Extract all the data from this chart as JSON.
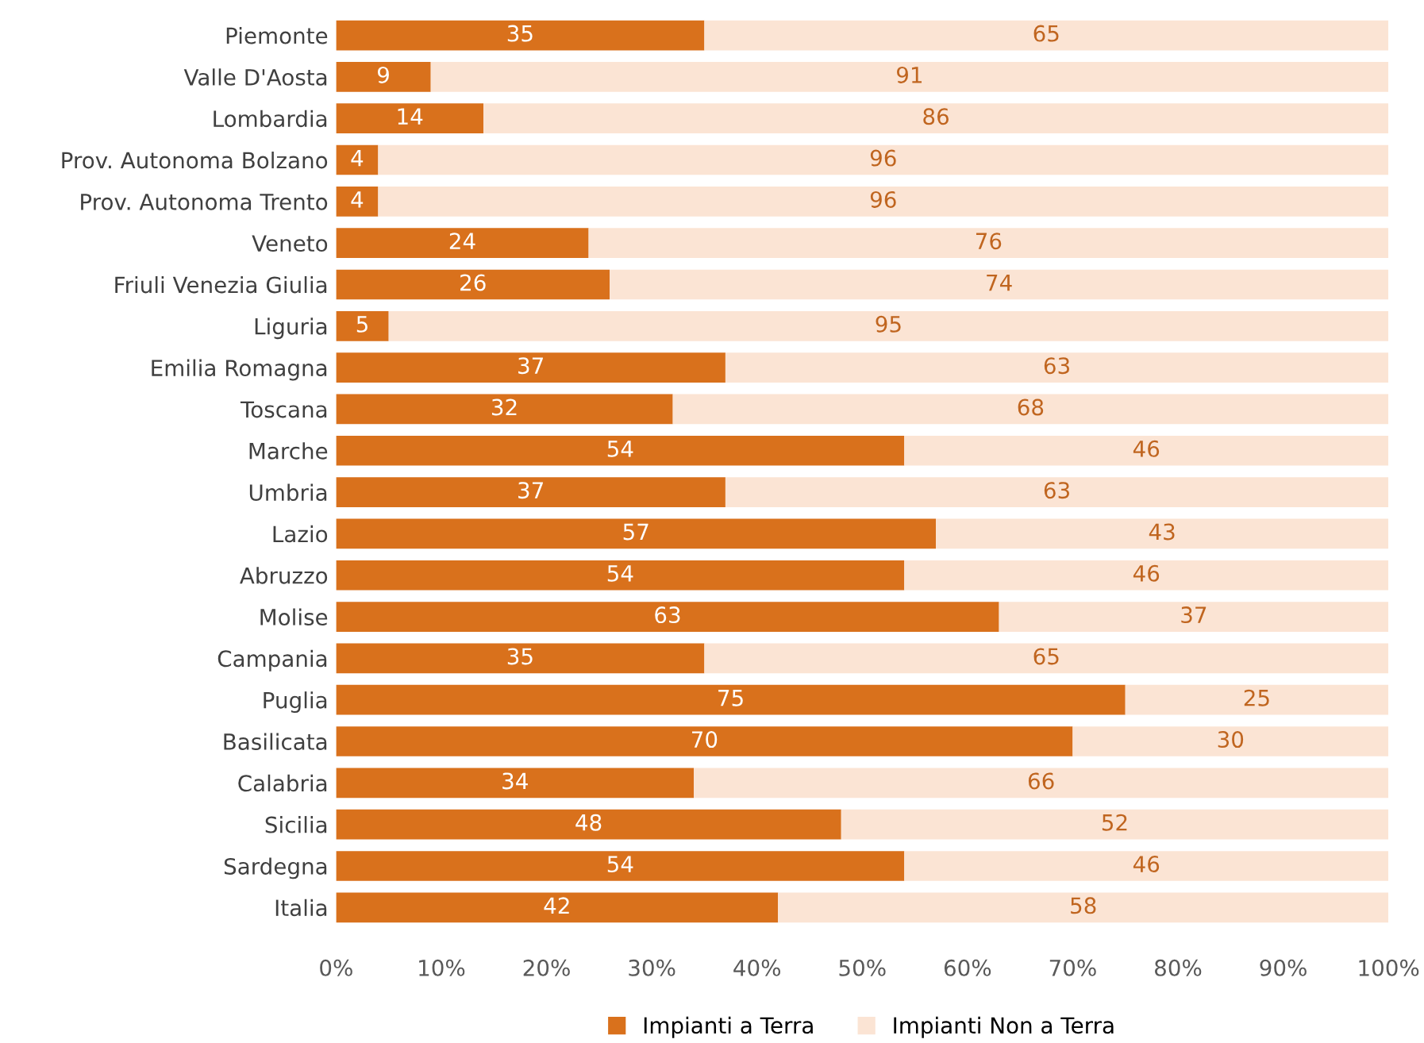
{
  "chart_data": {
    "type": "bar",
    "orientation": "horizontal",
    "stacked": true,
    "data_labels": true,
    "legend": "bottom",
    "grid": false,
    "categories": [
      "Piemonte",
      "Valle D'Aosta",
      "Lombardia",
      "Prov. Autonoma Bolzano",
      "Prov. Autonoma Trento",
      "Veneto",
      "Friuli Venezia Giulia",
      "Liguria",
      "Emilia Romagna",
      "Toscana",
      "Marche",
      "Umbria",
      "Lazio",
      "Abruzzo",
      "Molise",
      "Campania",
      "Puglia",
      "Basilicata",
      "Calabria",
      "Sicilia",
      "Sardegna",
      "Italia"
    ],
    "series": [
      {
        "name": "Impianti a Terra",
        "color": "#d9711c",
        "values": [
          35,
          9,
          14,
          4,
          4,
          24,
          26,
          5,
          37,
          32,
          54,
          37,
          57,
          54,
          63,
          35,
          75,
          70,
          34,
          48,
          54,
          42
        ]
      },
      {
        "name": "Impianti Non a Terra",
        "color": "#fbe4d4",
        "values": [
          65,
          91,
          86,
          96,
          96,
          76,
          74,
          95,
          63,
          68,
          46,
          63,
          43,
          46,
          37,
          65,
          25,
          30,
          66,
          52,
          46,
          58
        ]
      }
    ],
    "xlim": [
      0,
      100
    ],
    "xticks": [
      {
        "value": 0,
        "label": "0%"
      },
      {
        "value": 10,
        "label": "10%"
      },
      {
        "value": 20,
        "label": "20%"
      },
      {
        "value": 30,
        "label": "30%"
      },
      {
        "value": 40,
        "label": "40%"
      },
      {
        "value": 50,
        "label": "50%"
      },
      {
        "value": 60,
        "label": "60%"
      },
      {
        "value": 70,
        "label": "70%"
      },
      {
        "value": 80,
        "label": "80%"
      },
      {
        "value": 90,
        "label": "90%"
      },
      {
        "value": 100,
        "label": "100%"
      }
    ]
  }
}
